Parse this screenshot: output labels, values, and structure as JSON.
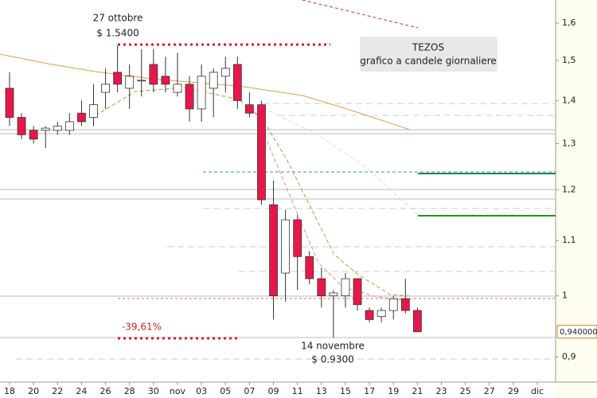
{
  "chart_data": {
    "type": "candlestick",
    "title": "TEZOS",
    "subtitle": "grafico a candele giornaliere",
    "categories": [
      "18",
      null,
      "20",
      null,
      "22",
      null,
      "24",
      null,
      "26",
      null,
      "28",
      null,
      "30",
      null,
      "nov",
      null,
      "03",
      null,
      "05",
      null,
      "07",
      null,
      "09",
      null,
      "11",
      null,
      "13",
      null,
      "15",
      null,
      "17",
      null,
      "19",
      null,
      "21",
      null,
      "23",
      null,
      "25",
      null,
      "27",
      null,
      "29",
      null,
      "dic"
    ],
    "open": [
      1.43,
      1.36,
      1.33,
      1.33,
      1.33,
      1.33,
      1.37,
      1.36,
      1.42,
      1.47,
      1.43,
      1.45,
      1.49,
      1.46,
      1.42,
      1.44,
      1.38,
      1.43,
      1.46,
      1.49,
      1.39,
      1.39,
      1.17,
      1.04,
      1.14,
      1.07,
      1.03,
      1.0,
      1.0,
      1.03,
      0.975,
      0.965,
      0.975,
      0.995,
      0.975,
      null,
      null,
      null,
      null,
      null,
      null,
      null,
      null,
      null,
      null
    ],
    "high": [
      1.47,
      1.37,
      1.34,
      1.34,
      1.35,
      1.37,
      1.4,
      1.44,
      1.48,
      1.54,
      1.49,
      1.53,
      1.53,
      1.51,
      1.52,
      1.46,
      1.49,
      1.48,
      1.51,
      1.51,
      1.42,
      1.4,
      1.22,
      1.16,
      1.15,
      1.08,
      1.05,
      1.01,
      1.04,
      1.03,
      0.98,
      0.98,
      1.0,
      1.03,
      0.98,
      null,
      null,
      null,
      null,
      null,
      null,
      null,
      null,
      null,
      null
    ],
    "low": [
      1.34,
      1.31,
      1.3,
      1.29,
      1.32,
      1.32,
      1.34,
      1.34,
      1.38,
      1.42,
      1.38,
      1.41,
      1.42,
      1.42,
      1.41,
      1.35,
      1.35,
      1.36,
      1.42,
      1.38,
      1.36,
      1.17,
      0.96,
      0.99,
      1.01,
      1.02,
      0.98,
      0.93,
      0.98,
      0.975,
      0.955,
      0.955,
      0.96,
      0.97,
      0.94,
      null,
      null,
      null,
      null,
      null,
      null,
      null,
      null,
      null,
      null
    ],
    "close": [
      1.36,
      1.32,
      1.31,
      1.335,
      1.34,
      1.35,
      1.35,
      1.39,
      1.44,
      1.44,
      1.46,
      1.45,
      1.44,
      1.44,
      1.44,
      1.38,
      1.46,
      1.47,
      1.48,
      1.4,
      1.37,
      1.18,
      1.0,
      1.14,
      1.07,
      1.03,
      1.0,
      1.005,
      1.03,
      0.985,
      0.96,
      0.975,
      0.995,
      0.975,
      0.94,
      null,
      null,
      null,
      null,
      null,
      null,
      null,
      null,
      null,
      null
    ],
    "up_color": "#ffffff",
    "down_color": "#e8174a",
    "log_scale": true,
    "ylim": [
      0.856,
      1.665
    ],
    "yticks": [
      {
        "value": 0.9,
        "label": "0,9"
      },
      {
        "value": 1,
        "label": "1"
      },
      {
        "value": 1.1,
        "label": "1,1"
      },
      {
        "value": 1.2,
        "label": "1,2"
      },
      {
        "value": 1.3,
        "label": "1,3"
      },
      {
        "value": 1.4,
        "label": "1,4"
      },
      {
        "value": 1.5,
        "label": "1,5"
      },
      {
        "value": 1.6,
        "label": "1,6"
      }
    ],
    "last_price": {
      "value": 0.94,
      "label": "0,940000"
    },
    "annotations": {
      "high_date": "27 ottobre",
      "high_price": "$ 1.5400",
      "low_date": "14 novembre",
      "low_price": "$ 0.9300",
      "change": "-39,61%"
    }
  }
}
